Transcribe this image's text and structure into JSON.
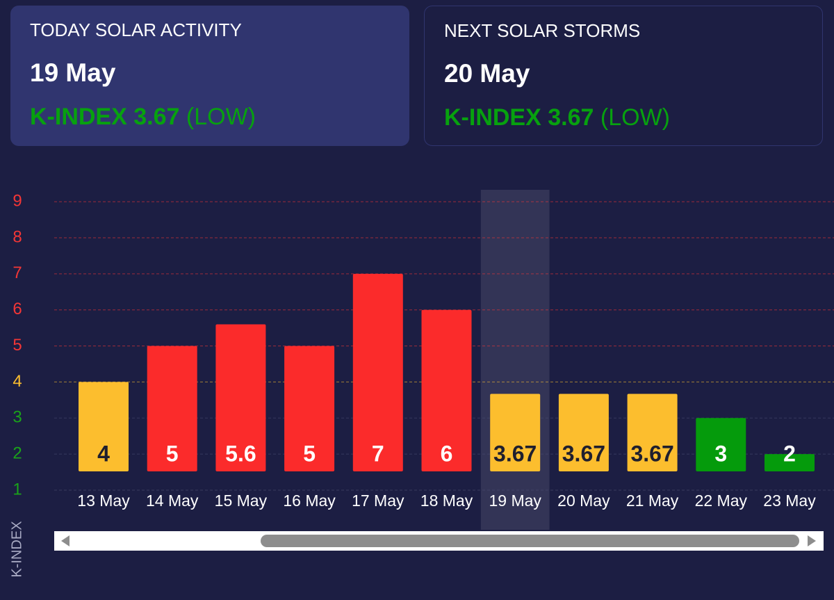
{
  "cards": [
    {
      "title": "TODAY SOLAR ACTIVITY",
      "date": "19 May",
      "kindex_label": "K-INDEX",
      "kindex": 3.67,
      "level": "(LOW)"
    },
    {
      "title": "NEXT SOLAR STORMS",
      "date": "20 May",
      "kindex_label": "K-INDEX",
      "kindex": 3.67,
      "level": "(LOW)"
    }
  ],
  "chart_data": {
    "type": "bar",
    "y_label": "K-INDEX",
    "categories": [
      "13 May",
      "14 May",
      "15 May",
      "16 May",
      "17 May",
      "18 May",
      "19 May",
      "20 May",
      "21 May",
      "22 May",
      "23 May"
    ],
    "values": [
      4,
      5,
      5.6,
      5,
      7,
      6,
      3.67,
      3.67,
      3.67,
      3,
      2
    ],
    "colors": [
      "#fcbe2e",
      "#fb2b2b",
      "#fb2b2b",
      "#fb2b2b",
      "#fb2b2b",
      "#fb2b2b",
      "#fcbe2e",
      "#fcbe2e",
      "#fcbe2e",
      "#059b0c",
      "#059b0c"
    ],
    "ylim": [
      1,
      9.35
    ],
    "yticks": [
      1,
      2,
      3,
      4,
      5,
      6,
      7,
      8,
      9
    ],
    "ytick_colors": [
      "#1aa31a",
      "#1aa31a",
      "#1aa31a",
      "#fcbe2e",
      "#f33636",
      "#f33636",
      "#f33636",
      "#f33636",
      "#f33636"
    ],
    "grid": true
  }
}
